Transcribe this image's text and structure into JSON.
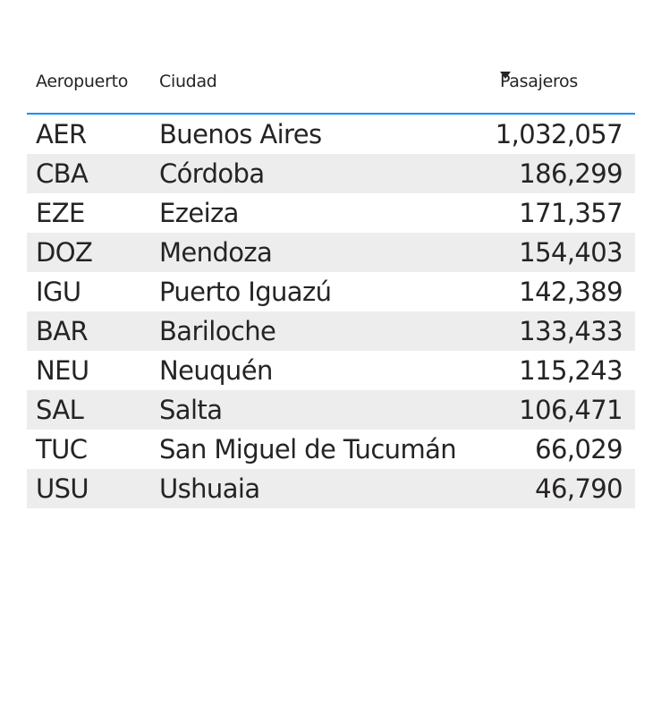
{
  "chart_data": {
    "type": "table",
    "columns": [
      "Aeropuerto",
      "Ciudad",
      "Pasajeros"
    ],
    "sort": {
      "column": "Pasajeros",
      "direction": "descending"
    },
    "rows": [
      {
        "aeropuerto": "AER",
        "ciudad": "Buenos Aires",
        "pasajeros": "1,032,057"
      },
      {
        "aeropuerto": "CBA",
        "ciudad": "Córdoba",
        "pasajeros": "186,299"
      },
      {
        "aeropuerto": "EZE",
        "ciudad": "Ezeiza",
        "pasajeros": "171,357"
      },
      {
        "aeropuerto": "DOZ",
        "ciudad": "Mendoza",
        "pasajeros": "154,403"
      },
      {
        "aeropuerto": "IGU",
        "ciudad": "Puerto Iguazú",
        "pasajeros": "142,389"
      },
      {
        "aeropuerto": "BAR",
        "ciudad": "Bariloche",
        "pasajeros": "133,433"
      },
      {
        "aeropuerto": "NEU",
        "ciudad": "Neuquén",
        "pasajeros": "115,243"
      },
      {
        "aeropuerto": "SAL",
        "ciudad": "Salta",
        "pasajeros": "106,471"
      },
      {
        "aeropuerto": "TUC",
        "ciudad": "San Miguel de Tucumán",
        "pasajeros": "66,029"
      },
      {
        "aeropuerto": "USU",
        "ciudad": "Ushuaia",
        "pasajeros": "46,790"
      }
    ]
  },
  "icons": {
    "sort": "sort-descending-icon"
  },
  "colors": {
    "header_rule": "#118dff",
    "alt_row": "#eeeded",
    "text": "#252423"
  }
}
